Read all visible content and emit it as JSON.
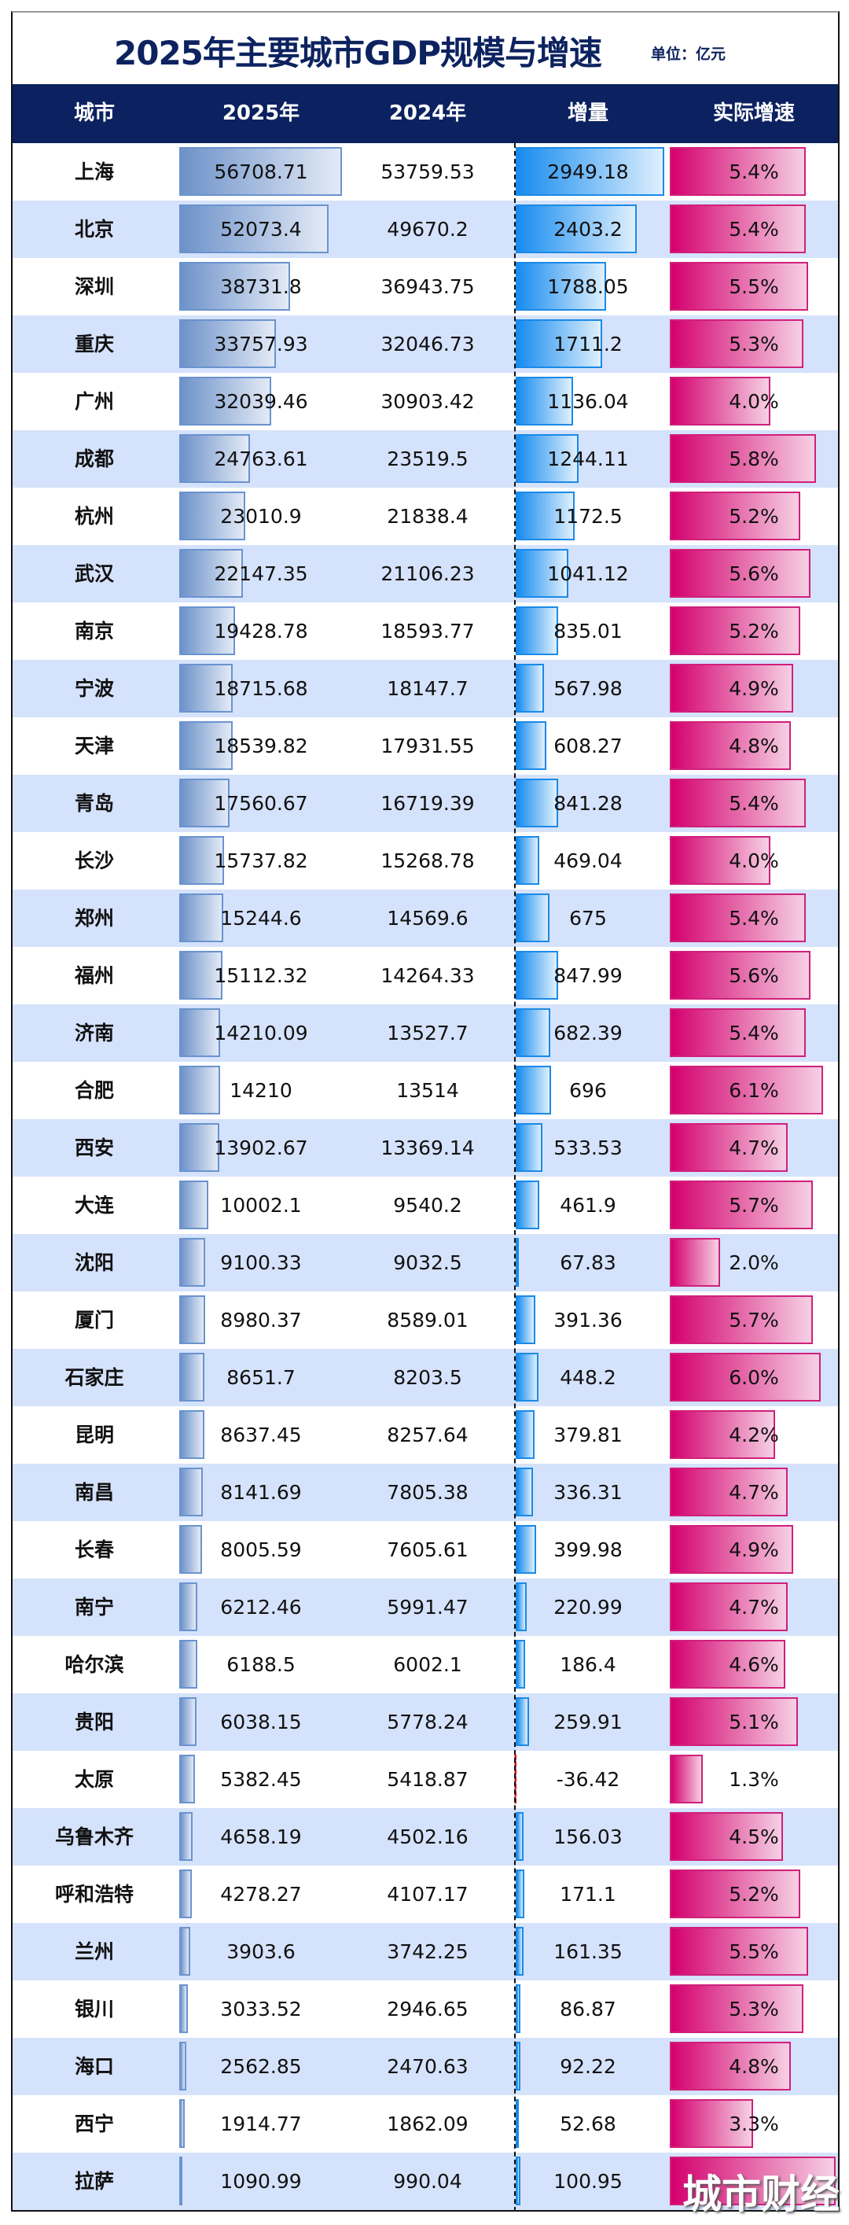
{
  "chart_data": {
    "type": "table",
    "title": "2025年主要城市GDP规模与增速",
    "unit": "单位：亿元",
    "columns": [
      "城市",
      "2025年",
      "2024年",
      "增量",
      "实际增速"
    ],
    "rows": [
      {
        "city": "上海",
        "gdp2025": "56708.71",
        "gdp2024": "53759.53",
        "increase": "2949.18",
        "growth": "5.4%"
      },
      {
        "city": "北京",
        "gdp2025": "52073.4",
        "gdp2024": "49670.2",
        "increase": "2403.2",
        "growth": "5.4%"
      },
      {
        "city": "深圳",
        "gdp2025": "38731.8",
        "gdp2024": "36943.75",
        "increase": "1788.05",
        "growth": "5.5%"
      },
      {
        "city": "重庆",
        "gdp2025": "33757.93",
        "gdp2024": "32046.73",
        "increase": "1711.2",
        "growth": "5.3%"
      },
      {
        "city": "广州",
        "gdp2025": "32039.46",
        "gdp2024": "30903.42",
        "increase": "1136.04",
        "growth": "4.0%"
      },
      {
        "city": "成都",
        "gdp2025": "24763.61",
        "gdp2024": "23519.5",
        "increase": "1244.11",
        "growth": "5.8%"
      },
      {
        "city": "杭州",
        "gdp2025": "23010.9",
        "gdp2024": "21838.4",
        "increase": "1172.5",
        "growth": "5.2%"
      },
      {
        "city": "武汉",
        "gdp2025": "22147.35",
        "gdp2024": "21106.23",
        "increase": "1041.12",
        "growth": "5.6%"
      },
      {
        "city": "南京",
        "gdp2025": "19428.78",
        "gdp2024": "18593.77",
        "increase": "835.01",
        "growth": "5.2%"
      },
      {
        "city": "宁波",
        "gdp2025": "18715.68",
        "gdp2024": "18147.7",
        "increase": "567.98",
        "growth": "4.9%"
      },
      {
        "city": "天津",
        "gdp2025": "18539.82",
        "gdp2024": "17931.55",
        "increase": "608.27",
        "growth": "4.8%"
      },
      {
        "city": "青岛",
        "gdp2025": "17560.67",
        "gdp2024": "16719.39",
        "increase": "841.28",
        "growth": "5.4%"
      },
      {
        "city": "长沙",
        "gdp2025": "15737.82",
        "gdp2024": "15268.78",
        "increase": "469.04",
        "growth": "4.0%"
      },
      {
        "city": "郑州",
        "gdp2025": "15244.6",
        "gdp2024": "14569.6",
        "increase": "675",
        "growth": "5.4%"
      },
      {
        "city": "福州",
        "gdp2025": "15112.32",
        "gdp2024": "14264.33",
        "increase": "847.99",
        "growth": "5.6%"
      },
      {
        "city": "济南",
        "gdp2025": "14210.09",
        "gdp2024": "13527.7",
        "increase": "682.39",
        "growth": "5.4%"
      },
      {
        "city": "合肥",
        "gdp2025": "14210",
        "gdp2024": "13514",
        "increase": "696",
        "growth": "6.1%"
      },
      {
        "city": "西安",
        "gdp2025": "13902.67",
        "gdp2024": "13369.14",
        "increase": "533.53",
        "growth": "4.7%"
      },
      {
        "city": "大连",
        "gdp2025": "10002.1",
        "gdp2024": "9540.2",
        "increase": "461.9",
        "growth": "5.7%"
      },
      {
        "city": "沈阳",
        "gdp2025": "9100.33",
        "gdp2024": "9032.5",
        "increase": "67.83",
        "growth": "2.0%"
      },
      {
        "city": "厦门",
        "gdp2025": "8980.37",
        "gdp2024": "8589.01",
        "increase": "391.36",
        "growth": "5.7%"
      },
      {
        "city": "石家庄",
        "gdp2025": "8651.7",
        "gdp2024": "8203.5",
        "increase": "448.2",
        "growth": "6.0%"
      },
      {
        "city": "昆明",
        "gdp2025": "8637.45",
        "gdp2024": "8257.64",
        "increase": "379.81",
        "growth": "4.2%"
      },
      {
        "city": "南昌",
        "gdp2025": "8141.69",
        "gdp2024": "7805.38",
        "increase": "336.31",
        "growth": "4.7%"
      },
      {
        "city": "长春",
        "gdp2025": "8005.59",
        "gdp2024": "7605.61",
        "increase": "399.98",
        "growth": "4.9%"
      },
      {
        "city": "南宁",
        "gdp2025": "6212.46",
        "gdp2024": "5991.47",
        "increase": "220.99",
        "growth": "4.7%"
      },
      {
        "city": "哈尔滨",
        "gdp2025": "6188.5",
        "gdp2024": "6002.1",
        "increase": "186.4",
        "growth": "4.6%"
      },
      {
        "city": "贵阳",
        "gdp2025": "6038.15",
        "gdp2024": "5778.24",
        "increase": "259.91",
        "growth": "5.1%"
      },
      {
        "city": "太原",
        "gdp2025": "5382.45",
        "gdp2024": "5418.87",
        "increase": "-36.42",
        "growth": "1.3%"
      },
      {
        "city": "乌鲁木齐",
        "gdp2025": "4658.19",
        "gdp2024": "4502.16",
        "increase": "156.03",
        "growth": "4.5%"
      },
      {
        "city": "呼和浩特",
        "gdp2025": "4278.27",
        "gdp2024": "4107.17",
        "increase": "171.1",
        "growth": "5.2%"
      },
      {
        "city": "兰州",
        "gdp2025": "3903.6",
        "gdp2024": "3742.25",
        "increase": "161.35",
        "growth": "5.5%"
      },
      {
        "city": "银川",
        "gdp2025": "3033.52",
        "gdp2024": "2946.65",
        "increase": "86.87",
        "growth": "5.3%"
      },
      {
        "city": "海口",
        "gdp2025": "2562.85",
        "gdp2024": "2470.63",
        "increase": "92.22",
        "growth": "4.8%"
      },
      {
        "city": "西宁",
        "gdp2025": "1914.77",
        "gdp2024": "1862.09",
        "increase": "52.68",
        "growth": "3.3%"
      },
      {
        "city": "拉萨",
        "gdp2025": "1090.99",
        "gdp2024": "990.04",
        "increase": "100.95",
        "growth": null,
        "growth_bar_value": 6.6
      }
    ]
  },
  "watermark": "城市财经",
  "colors": {
    "navy": "#0b2160",
    "row_alt": "#d5e2fb",
    "gdp_bar": "#6d92c9",
    "increase_bar": "#178cef",
    "growth_bar": "#d4006e"
  }
}
